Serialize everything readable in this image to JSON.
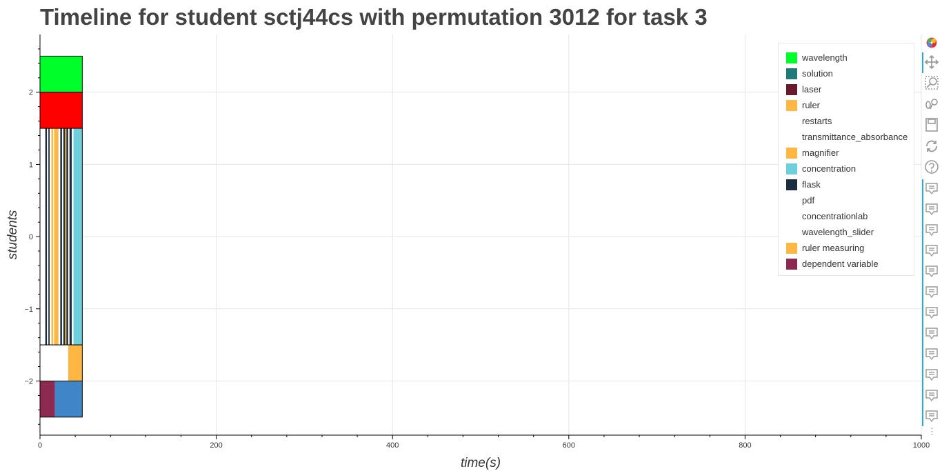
{
  "title": "Timeline for student sctj44cs with permutation 3012 for task 3",
  "chart_data": {
    "type": "bar",
    "title": "Timeline for student sctj44cs with permutation 3012 for task 3",
    "xlabel": "time(s)",
    "ylabel": "students",
    "xlim": [
      0,
      1000
    ],
    "ylim": [
      -2.75,
      2.8
    ],
    "x_ticks": [
      0,
      200,
      400,
      600,
      800,
      1000
    ],
    "y_ticks": [
      -2,
      -1,
      0,
      1,
      2
    ],
    "y_tick_labels": [
      "−2",
      "−1",
      "0",
      "1",
      "2"
    ],
    "grid": true,
    "legend_position": "top-right",
    "legend": [
      {
        "label": "wavelength",
        "color": "#00ff2a"
      },
      {
        "label": "solution",
        "color": "#1f7b78"
      },
      {
        "label": "laser",
        "color": "#6b1a2e"
      },
      {
        "label": "ruler",
        "color": "#ffb743"
      },
      {
        "label": "restarts",
        "color": "#ffffff"
      },
      {
        "label": "transmittance_absorbance",
        "color": "#ffffff"
      },
      {
        "label": "magnifier",
        "color": "#ffb743"
      },
      {
        "label": "concentration",
        "color": "#6ed0dc"
      },
      {
        "label": "flask",
        "color": "#1c2d40"
      },
      {
        "label": "pdf",
        "color": "#ffffff"
      },
      {
        "label": "concentrationlab",
        "color": "#ffffff"
      },
      {
        "label": "wavelength_slider",
        "color": "#ffffff"
      },
      {
        "label": "ruler measuring",
        "color": "#ffb743"
      },
      {
        "label": "dependent variable",
        "color": "#8e2a52"
      }
    ],
    "rows": [
      {
        "y0": 2.0,
        "y1": 2.5,
        "segments": [
          {
            "x0": 0,
            "x1": 48,
            "color": "#00ff2a"
          }
        ]
      },
      {
        "y0": 1.5,
        "y1": 2.0,
        "segments": [
          {
            "x0": 0,
            "x1": 48,
            "color": "#ff0000"
          }
        ]
      },
      {
        "y0": -1.5,
        "y1": 1.5,
        "segments": [
          {
            "x0": 0,
            "x1": 6,
            "color": "#ffffff"
          },
          {
            "x0": 6,
            "x1": 8,
            "color": "#1c2d40"
          },
          {
            "x0": 8,
            "x1": 9.5,
            "color": "#ffffff"
          },
          {
            "x0": 9.5,
            "x1": 11,
            "color": "#1c2d40"
          },
          {
            "x0": 11,
            "x1": 13,
            "color": "#ffffff"
          },
          {
            "x0": 13,
            "x1": 15,
            "color": "#ffb743"
          },
          {
            "x0": 15,
            "x1": 16,
            "color": "#ffffff"
          },
          {
            "x0": 16,
            "x1": 21,
            "color": "#ffb743"
          },
          {
            "x0": 21,
            "x1": 23,
            "color": "#ffffff"
          },
          {
            "x0": 23,
            "x1": 25,
            "color": "#1c2d40"
          },
          {
            "x0": 25,
            "x1": 26.5,
            "color": "#ffffff"
          },
          {
            "x0": 26.5,
            "x1": 28.5,
            "color": "#1c2d40"
          },
          {
            "x0": 28.5,
            "x1": 30,
            "color": "#ffb743"
          },
          {
            "x0": 30,
            "x1": 32,
            "color": "#1c2d40"
          },
          {
            "x0": 32,
            "x1": 33.5,
            "color": "#ffffff"
          },
          {
            "x0": 33.5,
            "x1": 36,
            "color": "#1c2d40"
          },
          {
            "x0": 36,
            "x1": 38,
            "color": "#ffffff"
          },
          {
            "x0": 38,
            "x1": 48,
            "color": "#6ed0dc"
          }
        ]
      },
      {
        "y0": -2.0,
        "y1": -1.5,
        "segments": [
          {
            "x0": 0,
            "x1": 32,
            "color": "#ffffff"
          },
          {
            "x0": 32,
            "x1": 48,
            "color": "#ffb743"
          }
        ]
      },
      {
        "y0": -2.5,
        "y1": -2.0,
        "segments": [
          {
            "x0": 0,
            "x1": 17,
            "color": "#8e2a52"
          },
          {
            "x0": 17,
            "x1": 48,
            "color": "#3f86c8"
          }
        ]
      }
    ]
  },
  "toolbar": {
    "tools": [
      {
        "name": "bokeh-logo-icon"
      },
      {
        "name": "pan-icon"
      },
      {
        "name": "box-zoom-icon"
      },
      {
        "name": "wheel-zoom-icon"
      },
      {
        "name": "save-icon"
      },
      {
        "name": "reset-icon"
      },
      {
        "name": "help-icon"
      },
      {
        "name": "hover-icon"
      },
      {
        "name": "hover-icon"
      },
      {
        "name": "hover-icon"
      },
      {
        "name": "hover-icon"
      },
      {
        "name": "hover-icon"
      },
      {
        "name": "hover-icon"
      },
      {
        "name": "hover-icon"
      },
      {
        "name": "hover-icon"
      },
      {
        "name": "hover-icon"
      },
      {
        "name": "hover-icon"
      },
      {
        "name": "hover-icon"
      },
      {
        "name": "hover-icon"
      }
    ],
    "more_label": "⋮"
  }
}
